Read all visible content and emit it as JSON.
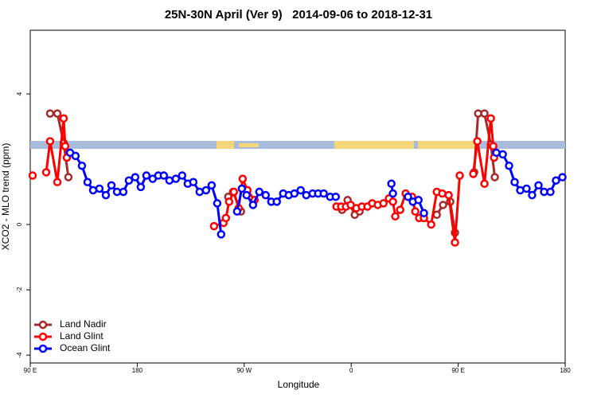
{
  "chart_data": {
    "type": "line",
    "title": "25N-30N April (Ver 9)   2014-09-06 to 2018-12-31",
    "x_label": "Longitude",
    "y_label": "XCO2 - MLO trend (ppm)",
    "xlim": [
      90,
      540
    ],
    "xticks": [
      {
        "value": 90,
        "label": "90 E"
      },
      {
        "value": 180,
        "label": "180"
      },
      {
        "value": 270,
        "label": "90 W"
      },
      {
        "value": 360,
        "label": "0"
      },
      {
        "value": 450,
        "label": "90 E"
      },
      {
        "value": 540,
        "label": "180"
      }
    ],
    "ylim": [
      -4.24,
      5.95
    ],
    "yticks": [
      -4,
      -2,
      0,
      4
    ],
    "legend": "bottom-left",
    "series": [
      {
        "name": "Land Nadir",
        "color": "#a52a2a",
        "x": [
          106.7,
          112.8,
          118.1,
          122.1,
          null,
          256.6,
          260.6,
          267.3,
          null,
          352.3,
          357.0,
          363.0,
          367.0,
          null,
          432.0,
          437.3,
          443.3,
          447.3,
          null,
          463.4,
          466.8,
          472.1,
          477.5,
          480.8
        ],
        "values": [
          3.4,
          3.4,
          2.5,
          1.45,
          null,
          0.85,
          1.0,
          0.4,
          null,
          0.45,
          0.75,
          0.3,
          0.4,
          null,
          0.3,
          0.6,
          0.7,
          -0.25,
          null,
          1.6,
          3.4,
          3.4,
          2.45,
          1.45
        ]
      },
      {
        "name": "Land Glint",
        "color": "#ff0000",
        "x": [
          92.0,
          null,
          103.4,
          106.7,
          112.8,
          118.1,
          119.4,
          120.8,
          null,
          244.6,
          252.6,
          254.6,
          257.3,
          261.3,
          265.3,
          268.7,
          272.7,
          278.7,
          null,
          347.6,
          351.6,
          355.6,
          359.6,
          364.3,
          369.0,
          373.7,
          377.7,
          382.4,
          387.1,
          391.8,
          395.1,
          397.1,
          401.2,
          405.8,
          411.2,
          413.9,
          417.2,
          421.2,
          427.3,
          432.0,
          436.6,
          442.0,
          447.3,
          451.3,
          null,
          462.7,
          466.1,
          472.1,
          477.5,
          479.5,
          480.2
        ],
        "values": [
          1.5,
          null,
          1.6,
          2.55,
          1.3,
          3.25,
          2.4,
          2.05,
          null,
          -0.05,
          0.05,
          0.2,
          0.7,
          1.0,
          0.5,
          1.4,
          1.05,
          0.75,
          null,
          0.55,
          0.55,
          0.55,
          0.6,
          0.5,
          0.55,
          0.55,
          0.65,
          0.6,
          0.65,
          0.8,
          0.7,
          0.25,
          0.45,
          0.95,
          0.85,
          0.4,
          0.2,
          0.2,
          0.0,
          1.0,
          0.95,
          0.9,
          -0.55,
          1.5,
          null,
          1.55,
          2.55,
          1.25,
          3.25,
          2.4,
          2.05
        ]
      },
      {
        "name": "Ocean Glint",
        "color": "#0000ff",
        "x": [
          123.5,
          128.1,
          133.5,
          138.2,
          142.9,
          148.2,
          153.6,
          158.3,
          163.0,
          168.3,
          173.0,
          178.3,
          183.0,
          187.7,
          193.0,
          197.7,
          202.4,
          207.1,
          212.5,
          217.8,
          222.5,
          227.2,
          232.5,
          237.9,
          242.6,
          247.3,
          250.6,
          null,
          264.0,
          268.0,
          272.0,
          277.4,
          282.7,
          288.1,
          292.8,
          297.4,
          302.8,
          307.5,
          312.2,
          317.5,
          322.2,
          327.6,
          332.2,
          336.9,
          342.3,
          347.0,
          null,
          393.8,
          395.1,
          null,
          407.8,
          411.9,
          416.6,
          421.2,
          null,
          482.1,
          487.5,
          492.8,
          497.5,
          502.2,
          507.5,
          512.2,
          517.6,
          522.3,
          527.6,
          532.3,
          537.7
        ],
        "values": [
          2.2,
          2.1,
          1.8,
          1.3,
          1.05,
          1.1,
          0.9,
          1.2,
          1.0,
          1.0,
          1.35,
          1.45,
          1.15,
          1.5,
          1.4,
          1.5,
          1.5,
          1.35,
          1.4,
          1.5,
          1.25,
          1.3,
          1.0,
          1.05,
          1.2,
          0.65,
          -0.3,
          null,
          0.4,
          1.1,
          0.9,
          0.6,
          1.0,
          0.9,
          0.7,
          0.7,
          0.95,
          0.9,
          0.95,
          1.05,
          0.9,
          0.95,
          0.95,
          0.95,
          0.85,
          0.85,
          null,
          1.25,
          0.95,
          null,
          0.85,
          0.7,
          0.75,
          0.35,
          null,
          2.2,
          2.15,
          1.8,
          1.3,
          1.05,
          1.1,
          0.9,
          1.2,
          1.0,
          1.0,
          1.35,
          1.45
        ]
      }
    ]
  }
}
